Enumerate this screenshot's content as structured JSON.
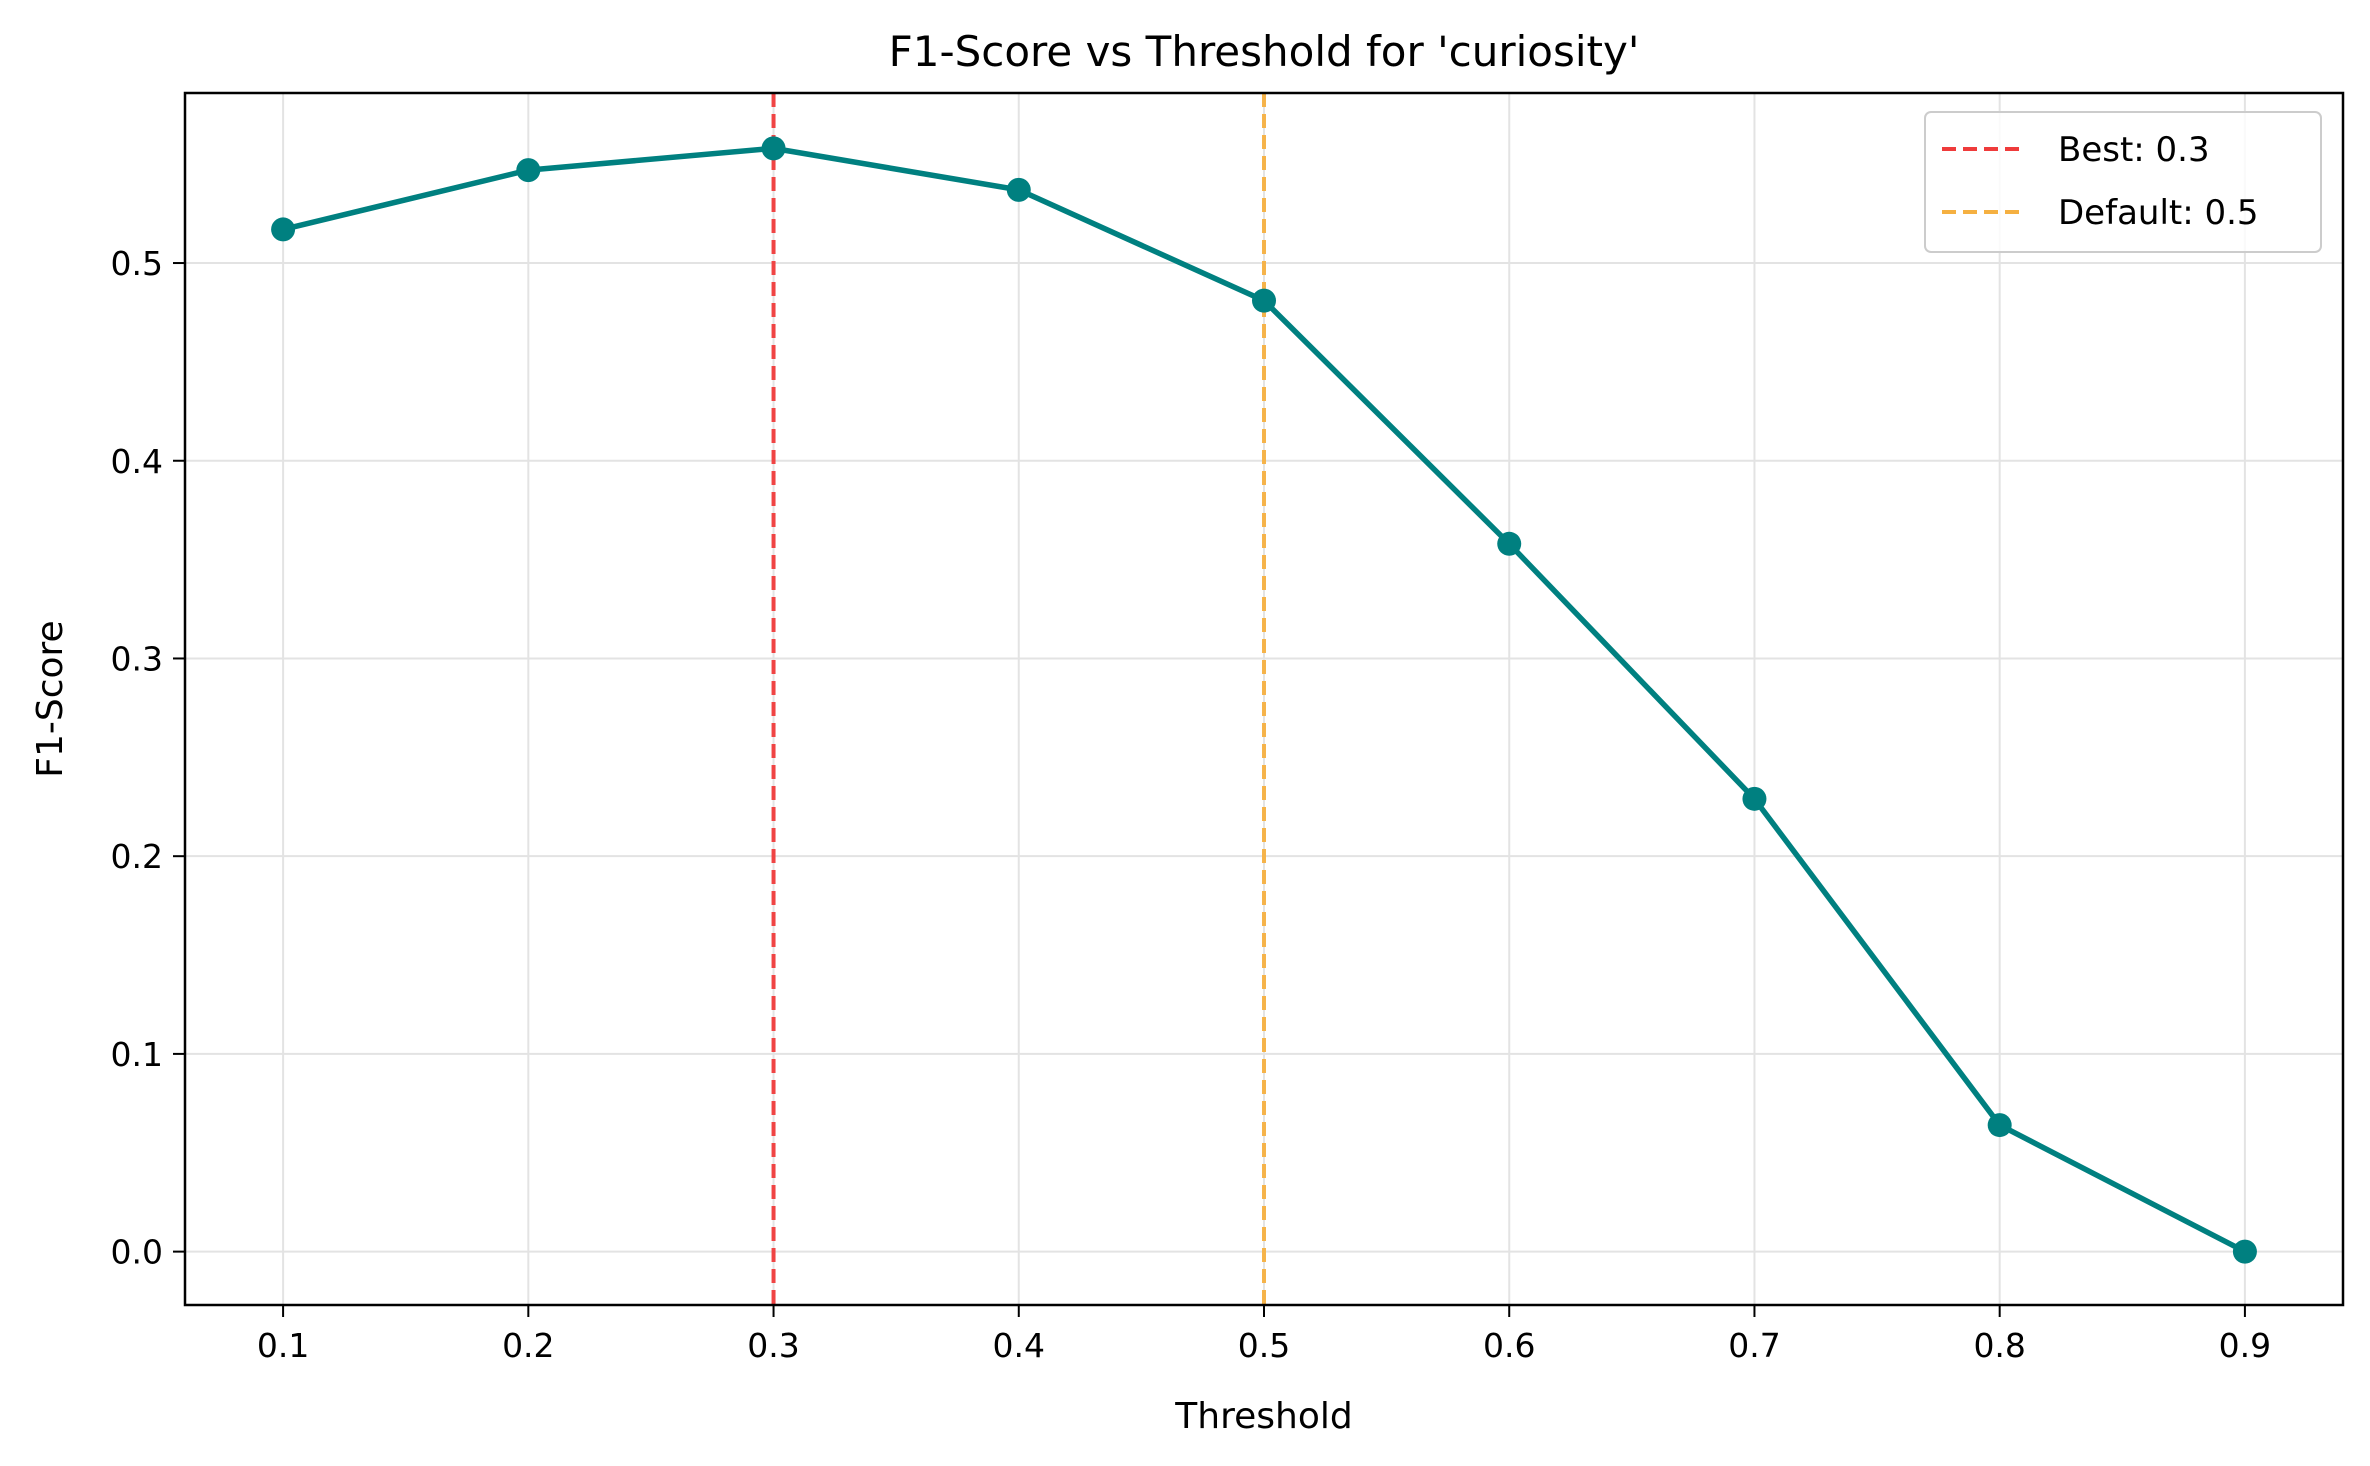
{
  "chart_data": {
    "type": "line",
    "title": "F1-Score vs Threshold for 'curiosity'",
    "xlabel": "Threshold",
    "ylabel": "F1-Score",
    "x": [
      0.1,
      0.2,
      0.3,
      0.4,
      0.5,
      0.6,
      0.7,
      0.8,
      0.9
    ],
    "series": [
      {
        "name": "F1-Score",
        "color": "#008080",
        "values": [
          0.517,
          0.547,
          0.558,
          0.537,
          0.481,
          0.358,
          0.229,
          0.064,
          0.0
        ]
      }
    ],
    "xlim": [
      0.06,
      0.94
    ],
    "ylim": [
      -0.027,
      0.586
    ],
    "xticks": [
      0.1,
      0.2,
      0.3,
      0.4,
      0.5,
      0.6,
      0.7,
      0.8,
      0.9
    ],
    "xtick_labels": [
      "0.1",
      "0.2",
      "0.3",
      "0.4",
      "0.5",
      "0.6",
      "0.7",
      "0.8",
      "0.9"
    ],
    "yticks": [
      0.0,
      0.1,
      0.2,
      0.3,
      0.4,
      0.5
    ],
    "ytick_labels": [
      "0.0",
      "0.1",
      "0.2",
      "0.3",
      "0.4",
      "0.5"
    ],
    "grid": true,
    "reference_lines": [
      {
        "name": "best-threshold-line",
        "x": 0.3,
        "color": "#ef3b3b",
        "label": "Best: 0.3"
      },
      {
        "name": "default-threshold-line",
        "x": 0.5,
        "color": "#f5b041",
        "label": "Default: 0.5"
      }
    ],
    "legend_position": "top-right"
  }
}
